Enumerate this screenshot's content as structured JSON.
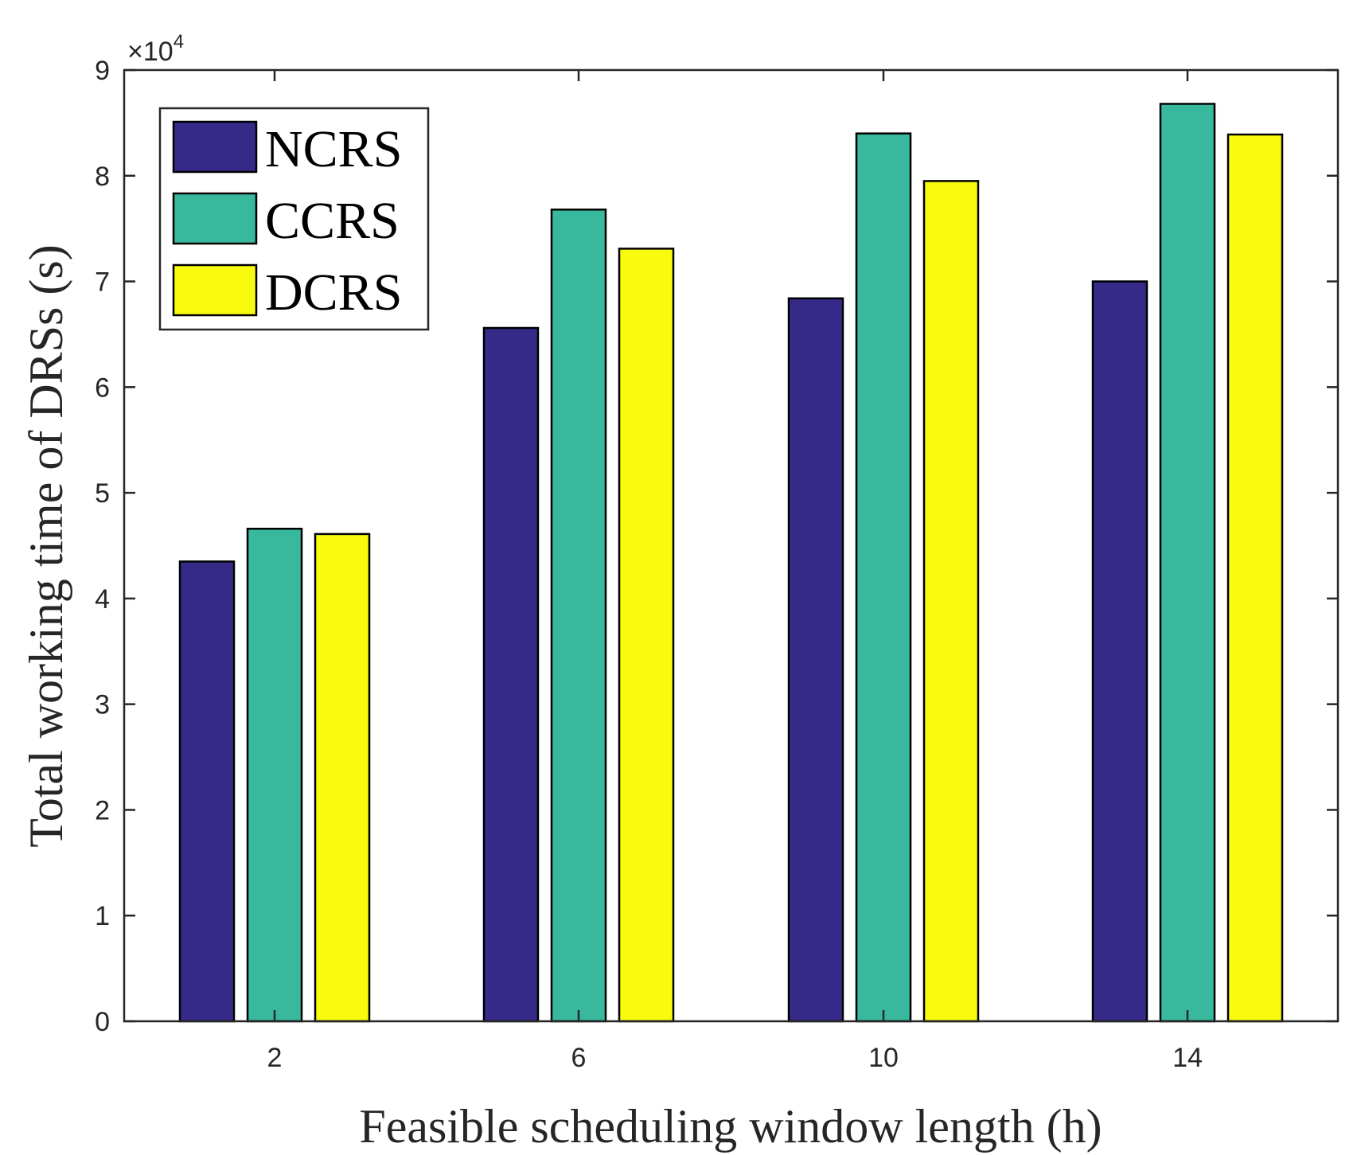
{
  "chart_data": {
    "type": "bar",
    "title": "",
    "xlabel": "Feasible scheduling window length (h)",
    "ylabel": "Total working time of DRSs (s)",
    "y_multiplier": {
      "prefix": "×10",
      "exponent": "4"
    },
    "categories": [
      "2",
      "6",
      "10",
      "14"
    ],
    "ylim": [
      0,
      9
    ],
    "yticks": [
      "0",
      "1",
      "2",
      "3",
      "4",
      "5",
      "6",
      "7",
      "8",
      "9"
    ],
    "grid": false,
    "legend_position": "top-left",
    "series": [
      {
        "name": "NCRS",
        "color": "#352a87",
        "values": [
          4.35,
          6.56,
          6.84,
          7.0
        ]
      },
      {
        "name": "CCRS",
        "color": "#38b99e",
        "values": [
          4.66,
          7.68,
          8.4,
          8.68
        ]
      },
      {
        "name": "DCRS",
        "color": "#f9fb0e",
        "values": [
          4.61,
          7.31,
          7.95,
          8.39
        ]
      }
    ]
  }
}
